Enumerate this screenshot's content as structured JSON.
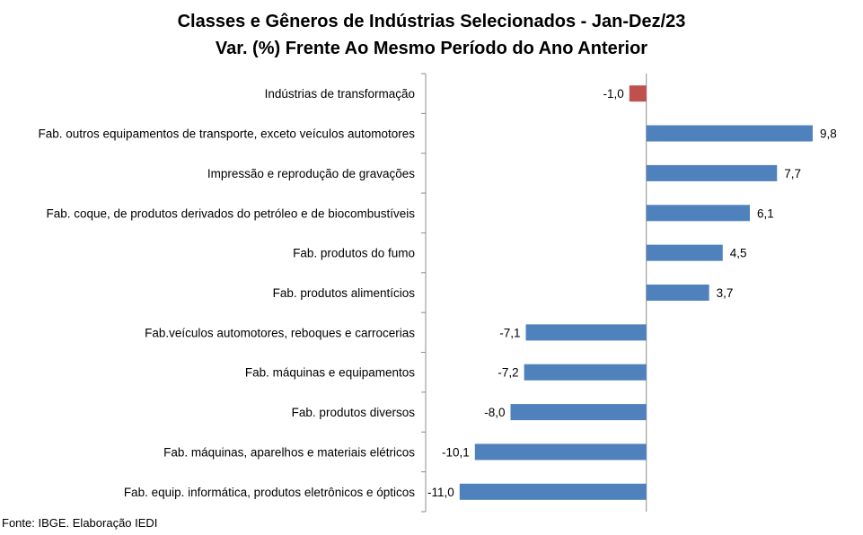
{
  "chart_data": {
    "type": "bar",
    "orientation": "horizontal",
    "title": "Classes e Gêneros de Indústrias Selecionados - Jan-Dez/23",
    "subtitle": "Var. (%) Frente Ao Mesmo Período do Ano Anterior",
    "categories": [
      "Indústrias de transformação",
      "Fab. outros equipamentos de transporte, exceto veículos automotores",
      "Impressão e reprodução de gravações",
      "Fab. coque, de produtos derivados do petróleo e de biocombustíveis",
      "Fab. produtos do fumo",
      "Fab. produtos alimentícios",
      "Fab.veículos automotores, reboques e carrocerias",
      "Fab. máquinas e equipamentos",
      "Fab. produtos diversos",
      "Fab. máquinas, aparelhos e materiais elétricos",
      "Fab. equip. informática, produtos eletrônicos e ópticos"
    ],
    "values": [
      -1.0,
      9.8,
      7.7,
      6.1,
      4.5,
      3.7,
      -7.1,
      -7.2,
      -8.0,
      -10.1,
      -11.0
    ],
    "value_labels": [
      "-1,0",
      "9,8",
      "7,7",
      "6,1",
      "4,5",
      "3,7",
      "-7,1",
      "-7,2",
      "-8,0",
      "-10,1",
      "-11,0"
    ],
    "xlim": [
      -13,
      12.5
    ],
    "grid": false,
    "legend": "none",
    "colors": {
      "highlight": "#C0504D",
      "default": "#4F81BD"
    },
    "highlight_index": 0
  },
  "source": "Fonte: IBGE. Elaboração IEDI"
}
